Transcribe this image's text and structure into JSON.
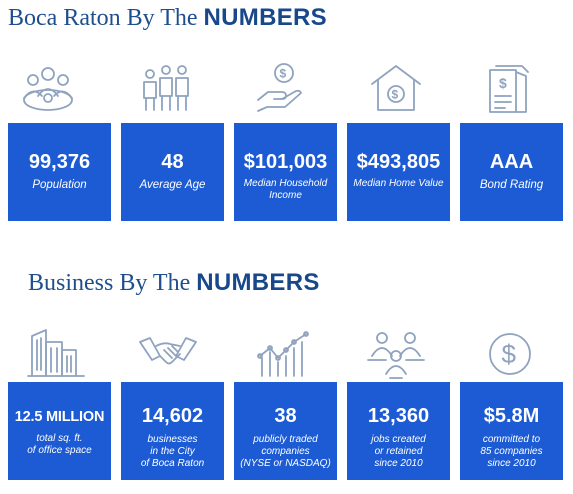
{
  "section1": {
    "title_light": "Boca Raton By The ",
    "title_bold": "NUMBERS",
    "stats": [
      {
        "value": "99,376",
        "label": "Population",
        "icon": "community-icon"
      },
      {
        "value": "48",
        "label": "Average Age",
        "icon": "family-icon"
      },
      {
        "value": "$101,003",
        "label": "Median Household Income",
        "icon": "hand-coin-icon"
      },
      {
        "value": "$493,805",
        "label": "Median Home Value",
        "icon": "house-dollar-icon"
      },
      {
        "value": "AAA",
        "label": "Bond Rating",
        "icon": "documents-dollar-icon"
      }
    ]
  },
  "section2": {
    "title_light": "Business By The ",
    "title_bold": "NUMBERS",
    "stats": [
      {
        "value": "12.5 MILLION",
        "label": "total sq. ft.\nof office space",
        "icon": "office-buildings-icon"
      },
      {
        "value": "14,602",
        "label": "businesses\nin the City\nof Boca Raton",
        "icon": "handshake-icon"
      },
      {
        "value": "38",
        "label": "publicly traded\ncompanies\n(NYSE or NASDAQ)",
        "icon": "growth-chart-icon"
      },
      {
        "value": "13,360",
        "label": "jobs created\nor retained\nsince 2010",
        "icon": "workers-icon"
      },
      {
        "value": "$5.8M",
        "label": "committed to\n85 companies\nsince 2010",
        "icon": "dollar-coin-icon"
      }
    ]
  },
  "colors": {
    "card": "#1c5bd3",
    "heading": "#1f4e8c",
    "icon": "#8fa3bf"
  }
}
